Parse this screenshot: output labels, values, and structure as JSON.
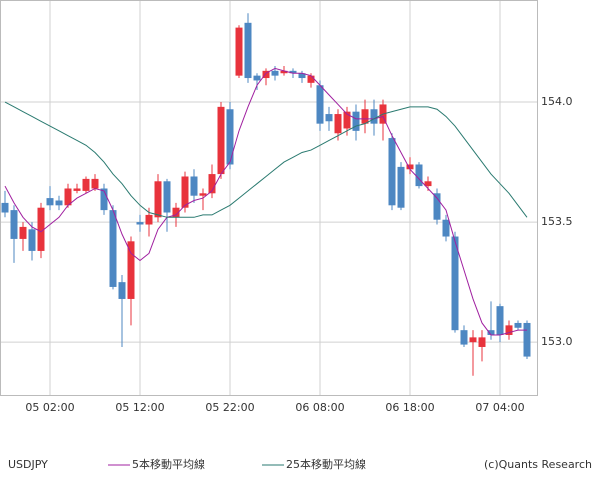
{
  "chart_data": {
    "type": "candlestick",
    "symbol": "USDJPY",
    "credit": "(c)Quants Research",
    "categories": [
      null,
      null,
      null,
      null,
      null,
      "05 02:00",
      null,
      null,
      null,
      null,
      null,
      null,
      null,
      null,
      null,
      "05 12:00",
      null,
      null,
      null,
      null,
      null,
      null,
      null,
      null,
      null,
      "05 22:00",
      null,
      null,
      null,
      null,
      null,
      null,
      null,
      null,
      null,
      "06 08:00",
      null,
      null,
      null,
      null,
      null,
      null,
      null,
      null,
      null,
      "06 18:00",
      null,
      null,
      null,
      null,
      null,
      null,
      null,
      null,
      null,
      "07 04:00",
      null,
      null,
      null
    ],
    "open": [
      153.58,
      153.55,
      153.43,
      153.47,
      153.38,
      153.6,
      153.59,
      153.57,
      153.63,
      153.63,
      153.64,
      153.64,
      153.55,
      153.25,
      153.18,
      153.5,
      153.49,
      153.52,
      153.67,
      153.52,
      153.56,
      153.69,
      153.61,
      153.62,
      153.7,
      153.97,
      154.11,
      154.33,
      154.11,
      154.1,
      154.13,
      154.12,
      154.13,
      154.12,
      154.08,
      154.07,
      153.95,
      153.87,
      153.89,
      153.96,
      153.91,
      153.97,
      153.91,
      153.85,
      153.73,
      153.72,
      153.74,
      153.65,
      153.62,
      153.51,
      153.44,
      153.05,
      153.0,
      152.98,
      153.05,
      153.15,
      153.03,
      153.08,
      153.08
    ],
    "high": [
      153.63,
      153.57,
      153.5,
      153.5,
      153.58,
      153.65,
      153.61,
      153.66,
      153.66,
      153.69,
      153.7,
      153.66,
      153.57,
      153.28,
      153.44,
      153.53,
      153.56,
      153.7,
      153.68,
      153.58,
      153.71,
      153.72,
      153.64,
      153.74,
      154.0,
      154.0,
      154.32,
      154.37,
      154.12,
      154.14,
      154.15,
      154.15,
      154.14,
      154.13,
      154.12,
      154.09,
      153.98,
      153.97,
      153.98,
      153.99,
      154.01,
      154.01,
      154.01,
      153.87,
      153.75,
      153.77,
      153.75,
      153.69,
      153.64,
      153.53,
      153.46,
      153.07,
      153.05,
      153.05,
      153.17,
      153.16,
      153.09,
      153.09,
      153.09
    ],
    "low": [
      153.52,
      153.33,
      153.38,
      153.34,
      153.35,
      153.55,
      153.55,
      153.56,
      153.62,
      153.62,
      153.63,
      153.53,
      153.22,
      152.98,
      153.07,
      153.46,
      153.44,
      153.5,
      153.46,
      153.48,
      153.54,
      153.58,
      153.55,
      153.6,
      153.68,
      153.72,
      154.1,
      154.08,
      154.05,
      154.07,
      154.09,
      154.11,
      154.1,
      154.08,
      154.06,
      153.88,
      153.88,
      153.84,
      153.86,
      153.84,
      153.87,
      153.86,
      153.84,
      153.55,
      153.55,
      153.7,
      153.64,
      153.63,
      153.49,
      153.42,
      153.04,
      152.98,
      152.86,
      152.92,
      153.01,
      153.0,
      153.01,
      153.05,
      152.93
    ],
    "close": [
      153.54,
      153.43,
      153.48,
      153.38,
      153.56,
      153.57,
      153.57,
      153.64,
      153.64,
      153.68,
      153.68,
      153.55,
      153.23,
      153.18,
      153.42,
      153.49,
      153.53,
      153.67,
      153.54,
      153.56,
      153.69,
      153.61,
      153.62,
      153.7,
      153.98,
      153.74,
      154.31,
      154.1,
      154.09,
      154.13,
      154.11,
      154.13,
      154.12,
      154.1,
      154.11,
      153.91,
      153.92,
      153.95,
      153.96,
      153.88,
      153.97,
      153.91,
      153.99,
      153.57,
      153.56,
      153.74,
      153.65,
      153.67,
      153.51,
      153.44,
      153.05,
      152.99,
      153.02,
      153.02,
      153.03,
      153.03,
      153.07,
      153.06,
      152.94
    ],
    "up_color": "#e8333c",
    "down_color": "#4d87c2",
    "series": [
      {
        "name": "5本移動平均線",
        "color": "#a020a0",
        "values": [
          153.65,
          153.58,
          153.52,
          153.48,
          153.46,
          153.49,
          153.52,
          153.57,
          153.6,
          153.62,
          153.64,
          153.63,
          153.55,
          153.45,
          153.37,
          153.34,
          153.37,
          153.47,
          153.52,
          153.53,
          153.57,
          153.59,
          153.6,
          153.63,
          153.7,
          153.75,
          153.88,
          153.98,
          154.07,
          154.12,
          154.14,
          154.13,
          154.12,
          154.12,
          154.11,
          154.07,
          154.03,
          153.99,
          153.95,
          153.93,
          153.93,
          153.93,
          153.94,
          153.86,
          153.79,
          153.72,
          153.68,
          153.64,
          153.6,
          153.55,
          153.42,
          153.3,
          153.18,
          153.08,
          153.03,
          153.03,
          153.04,
          153.05,
          153.05
        ]
      },
      {
        "name": "25本移動平均線",
        "color": "#2a7a70",
        "values": [
          154.0,
          153.98,
          153.96,
          153.94,
          153.92,
          153.9,
          153.88,
          153.86,
          153.84,
          153.82,
          153.79,
          153.75,
          153.7,
          153.66,
          153.61,
          153.57,
          153.54,
          153.53,
          153.52,
          153.52,
          153.52,
          153.52,
          153.53,
          153.53,
          153.55,
          153.57,
          153.6,
          153.63,
          153.66,
          153.69,
          153.72,
          153.75,
          153.77,
          153.79,
          153.8,
          153.82,
          153.84,
          153.86,
          153.88,
          153.9,
          153.91,
          153.93,
          153.95,
          153.96,
          153.97,
          153.98,
          153.98,
          153.98,
          153.97,
          153.94,
          153.9,
          153.85,
          153.8,
          153.75,
          153.7,
          153.66,
          153.62,
          153.57,
          153.52
        ]
      }
    ],
    "ylim": [
      152.78,
      154.425
    ],
    "yticks": [
      {
        "value": 153,
        "label": "153.0"
      },
      {
        "value": 153.5,
        "label": "153.5"
      },
      {
        "value": 154,
        "label": "154.0"
      }
    ],
    "grid": true
  }
}
